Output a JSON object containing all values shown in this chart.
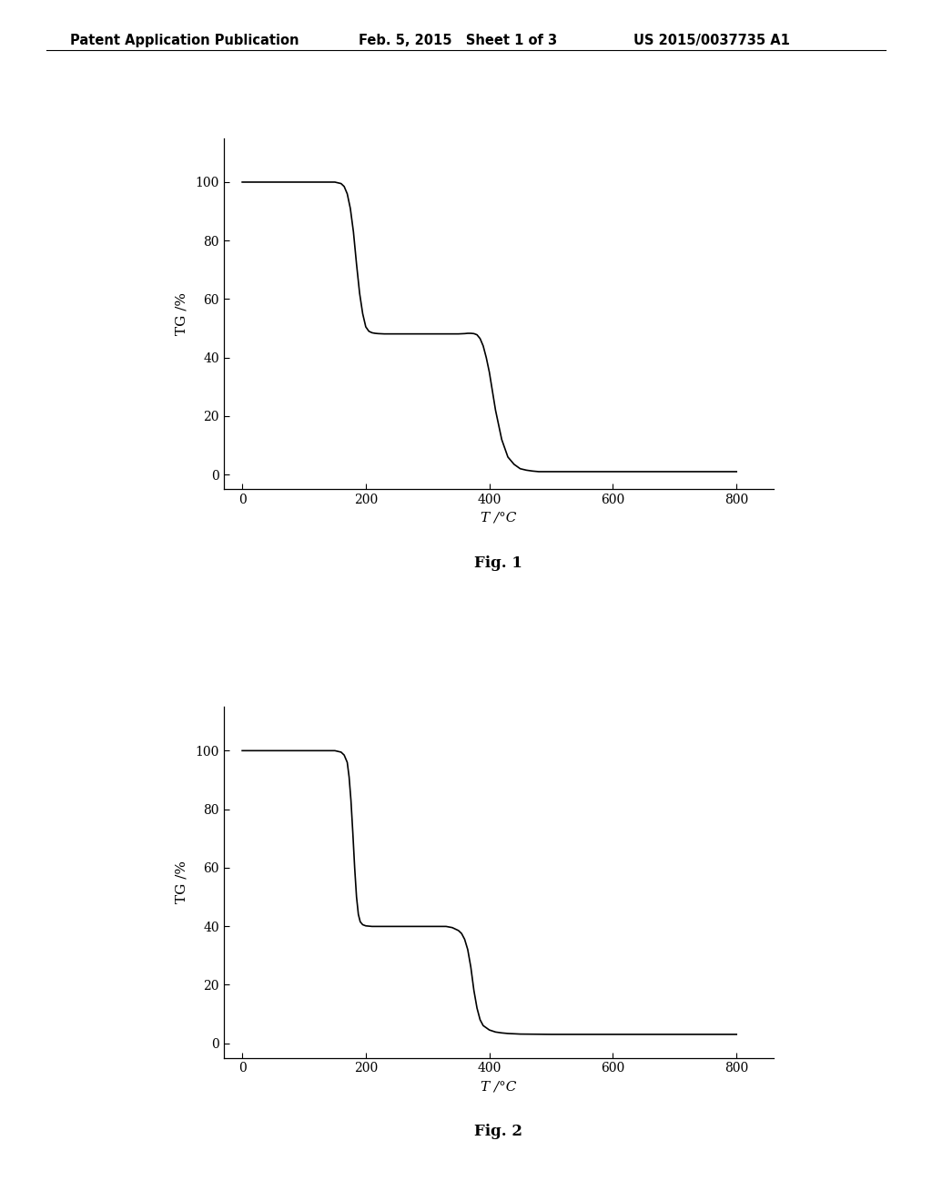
{
  "fig1_x": [
    0,
    30,
    60,
    90,
    120,
    150,
    160,
    165,
    170,
    175,
    180,
    185,
    190,
    195,
    200,
    205,
    210,
    215,
    220,
    230,
    250,
    270,
    290,
    310,
    330,
    350,
    360,
    365,
    370,
    375,
    380,
    385,
    390,
    395,
    400,
    410,
    420,
    430,
    440,
    450,
    460,
    470,
    480,
    490,
    500,
    550,
    600,
    650,
    700,
    750,
    800
  ],
  "fig1_y": [
    100.0,
    100.0,
    100.0,
    100.0,
    100.0,
    100.0,
    99.5,
    98.5,
    96.0,
    91.0,
    83.0,
    72.0,
    62.0,
    55.0,
    50.5,
    49.0,
    48.5,
    48.3,
    48.2,
    48.1,
    48.1,
    48.1,
    48.1,
    48.1,
    48.1,
    48.1,
    48.2,
    48.3,
    48.3,
    48.2,
    47.8,
    46.5,
    44.0,
    40.0,
    35.0,
    22.0,
    12.0,
    6.0,
    3.5,
    2.0,
    1.5,
    1.2,
    1.0,
    1.0,
    1.0,
    1.0,
    1.0,
    1.0,
    1.0,
    1.0,
    1.0
  ],
  "fig2_x": [
    0,
    30,
    60,
    90,
    120,
    150,
    160,
    165,
    170,
    173,
    176,
    179,
    182,
    185,
    188,
    191,
    195,
    200,
    210,
    220,
    230,
    250,
    270,
    290,
    310,
    330,
    340,
    345,
    350,
    355,
    360,
    365,
    370,
    375,
    380,
    385,
    390,
    400,
    410,
    420,
    430,
    440,
    450,
    500,
    550,
    600,
    650,
    700,
    750,
    800
  ],
  "fig2_y": [
    100.0,
    100.0,
    100.0,
    100.0,
    100.0,
    100.0,
    99.5,
    98.5,
    96.0,
    91.0,
    83.0,
    72.0,
    60.0,
    50.0,
    44.0,
    41.5,
    40.5,
    40.1,
    39.9,
    39.9,
    39.9,
    39.9,
    39.9,
    39.9,
    39.9,
    39.9,
    39.5,
    39.0,
    38.5,
    37.5,
    35.5,
    32.0,
    26.0,
    18.0,
    12.0,
    8.0,
    6.0,
    4.5,
    3.8,
    3.5,
    3.3,
    3.2,
    3.1,
    3.0,
    3.0,
    3.0,
    3.0,
    3.0,
    3.0,
    3.0
  ],
  "header_left": "Patent Application Publication",
  "header_mid": "Feb. 5, 2015   Sheet 1 of 3",
  "header_right": "US 2015/0037735 A1",
  "fig1_caption": "Fig. 1",
  "fig2_caption": "Fig. 2",
  "ylabel": "TG /%",
  "xlabel": "T /°C",
  "xlim": [
    -30,
    860
  ],
  "ylim": [
    -5,
    115
  ],
  "xticks": [
    0,
    200,
    400,
    600,
    800
  ],
  "yticks": [
    0,
    20,
    40,
    60,
    80,
    100
  ],
  "line_color": "#000000",
  "bg_color": "#ffffff",
  "header_fontsize": 10.5,
  "axis_fontsize": 11,
  "tick_fontsize": 10,
  "caption_fontsize": 12
}
